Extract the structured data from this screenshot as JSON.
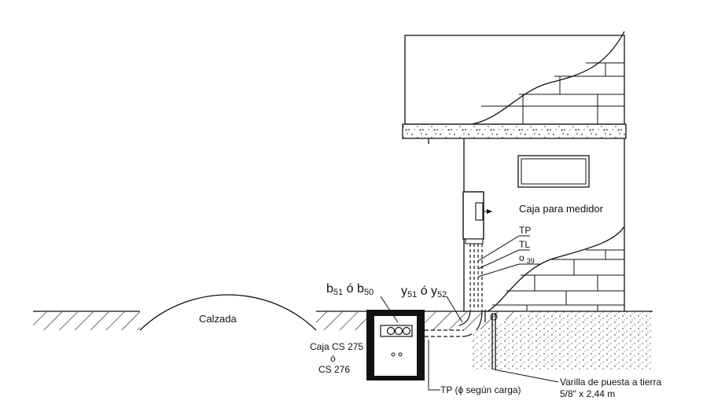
{
  "labels": {
    "calzada": "Calzada",
    "caja_medidor": "Caja para medidor",
    "tp": "TP",
    "tl": "TL",
    "o_main": "o",
    "o_sub": "39",
    "b_main1": "b",
    "b_sub1": "51",
    "b_or": " ó ",
    "b_main2": "b",
    "b_sub2": "50",
    "y_main1": "y",
    "y_sub1": "51",
    "y_or": " ó ",
    "y_main2": "y",
    "y_sub2": "52",
    "caja_cs_1": "Caja CS 275",
    "caja_cs_2": "ó",
    "caja_cs_3": "CS 276",
    "tp_carga": "TP (ϕ según carga)",
    "varilla_1": "Varilla de puesta a tierra",
    "varilla_2": "5/8\" x 2,44 m"
  }
}
